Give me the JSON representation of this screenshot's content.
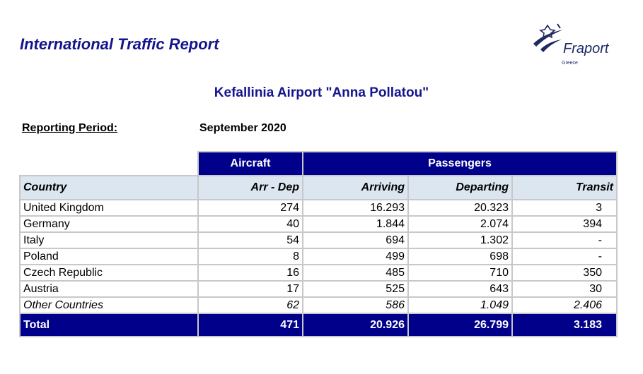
{
  "report": {
    "title": "International Traffic Report",
    "airport": "Kefallinia Airport \"Anna Pollatou\"",
    "period_label": "Reporting Period:",
    "period_value": "September 2020"
  },
  "logo": {
    "name": "Fraport",
    "subtitle": "Greece",
    "color": "#1d2a63"
  },
  "colors": {
    "title": "#14148c",
    "header_band": "#00008b",
    "column_header": "#dce6f0"
  },
  "table": {
    "groups": {
      "aircraft": "Aircraft",
      "passengers": "Passengers"
    },
    "columns": {
      "country": "Country",
      "arr_dep": "Arr - Dep",
      "arriving": "Arriving",
      "departing": "Departing",
      "transit": "Transit"
    },
    "rows": [
      {
        "country": "United Kingdom",
        "arr_dep": "274",
        "arriving": "16.293",
        "departing": "20.323",
        "transit": "3"
      },
      {
        "country": "Germany",
        "arr_dep": "40",
        "arriving": "1.844",
        "departing": "2.074",
        "transit": "394"
      },
      {
        "country": "Italy",
        "arr_dep": "54",
        "arriving": "694",
        "departing": "1.302",
        "transit": "-"
      },
      {
        "country": "Poland",
        "arr_dep": "8",
        "arriving": "499",
        "departing": "698",
        "transit": "-"
      },
      {
        "country": "Czech Republic",
        "arr_dep": "16",
        "arriving": "485",
        "departing": "710",
        "transit": "350"
      },
      {
        "country": "Austria",
        "arr_dep": "17",
        "arriving": "525",
        "departing": "643",
        "transit": "30"
      },
      {
        "country": "Other Countries",
        "arr_dep": "62",
        "arriving": "586",
        "departing": "1.049",
        "transit": "2.406"
      }
    ],
    "total": {
      "label": "Total",
      "arr_dep": "471",
      "arriving": "20.926",
      "departing": "26.799",
      "transit": "3.183"
    }
  }
}
